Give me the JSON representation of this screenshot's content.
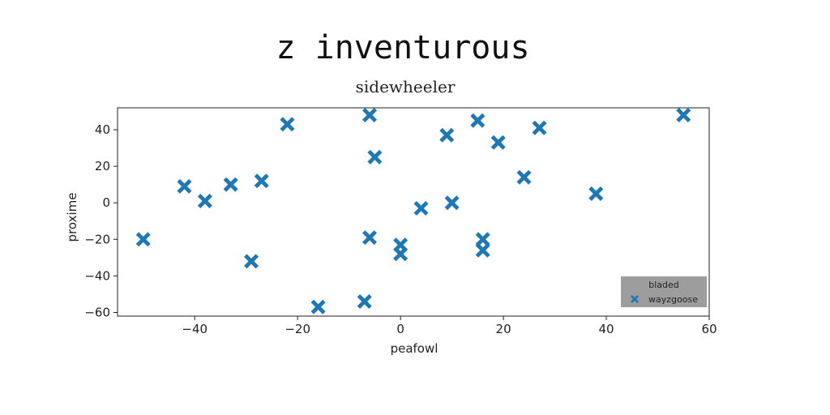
{
  "chart_data": {
    "type": "scatter",
    "title": "z inventurous",
    "subtitle": "sidewheeler",
    "xlabel": "peafowl",
    "ylabel": "proxime",
    "xlim": [
      -55,
      60
    ],
    "ylim": [
      -62,
      52
    ],
    "xticks": [
      "−40",
      "−20",
      "0",
      "20",
      "40",
      "60"
    ],
    "xtick_values": [
      -40,
      -20,
      0,
      20,
      40,
      60
    ],
    "yticks": [
      "40",
      "20",
      "0",
      "−20",
      "−40",
      "−60"
    ],
    "ytick_values": [
      40,
      20,
      0,
      -20,
      -40,
      -60
    ],
    "grid": false,
    "legend": {
      "title": "bladed",
      "placement": "lower-right"
    },
    "series": [
      {
        "name": "wayzgoose",
        "marker": "x-filled",
        "color": "#1f77b4",
        "points": [
          [
            -50,
            -20
          ],
          [
            -42,
            9
          ],
          [
            -38,
            1
          ],
          [
            -33,
            10
          ],
          [
            -27,
            12
          ],
          [
            -29,
            -32
          ],
          [
            -22,
            43
          ],
          [
            -16,
            -57
          ],
          [
            -7,
            -54
          ],
          [
            -6,
            48
          ],
          [
            -5,
            25
          ],
          [
            -6,
            -19
          ],
          [
            0,
            -23
          ],
          [
            0,
            -28
          ],
          [
            4,
            -3
          ],
          [
            9,
            37
          ],
          [
            10,
            0
          ],
          [
            15,
            45
          ],
          [
            16,
            -20
          ],
          [
            16,
            -26
          ],
          [
            19,
            33
          ],
          [
            24,
            14
          ],
          [
            27,
            41
          ],
          [
            38,
            5
          ],
          [
            55,
            48
          ]
        ]
      }
    ]
  }
}
